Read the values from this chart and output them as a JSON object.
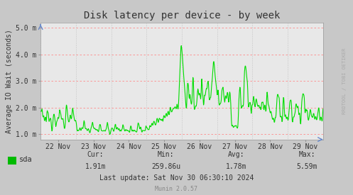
{
  "title": "Disk latency per device - by week",
  "ylabel": "Average IO Wait (seconds)",
  "bg_color": "#c8c8c8",
  "plot_bg_color": "#e8e8e8",
  "line_color": "#00dd00",
  "grid_h_color": "#ff8888",
  "grid_v_color": "#aaaaaa",
  "ylim_low": 0.0008,
  "ylim_high": 0.0052,
  "yticks": [
    0.001,
    0.002,
    0.003,
    0.004,
    0.005
  ],
  "ytick_labels": [
    "1.0 m",
    "2.0 m",
    "3.0 m",
    "4.0 m",
    "5.0 m"
  ],
  "xtick_labels": [
    "22 Nov",
    "23 Nov",
    "24 Nov",
    "25 Nov",
    "26 Nov",
    "27 Nov",
    "28 Nov",
    "29 Nov"
  ],
  "legend_label": "sda",
  "legend_color": "#00bb00",
  "cur_label": "Cur:",
  "cur_val": "1.91m",
  "min_label": "Min:",
  "min_val": "259.86u",
  "avg_label": "Avg:",
  "avg_val": "1.78m",
  "max_label": "Max:",
  "max_val": "5.59m",
  "last_update": "Last update: Sat Nov 30 06:30:10 2024",
  "munin_version": "Munin 2.0.57",
  "watermark": "RRDTOOL / TOBI OETIKER",
  "title_fontsize": 10,
  "axis_label_fontsize": 7,
  "tick_fontsize": 7,
  "stats_fontsize": 7,
  "watermark_fontsize": 5
}
